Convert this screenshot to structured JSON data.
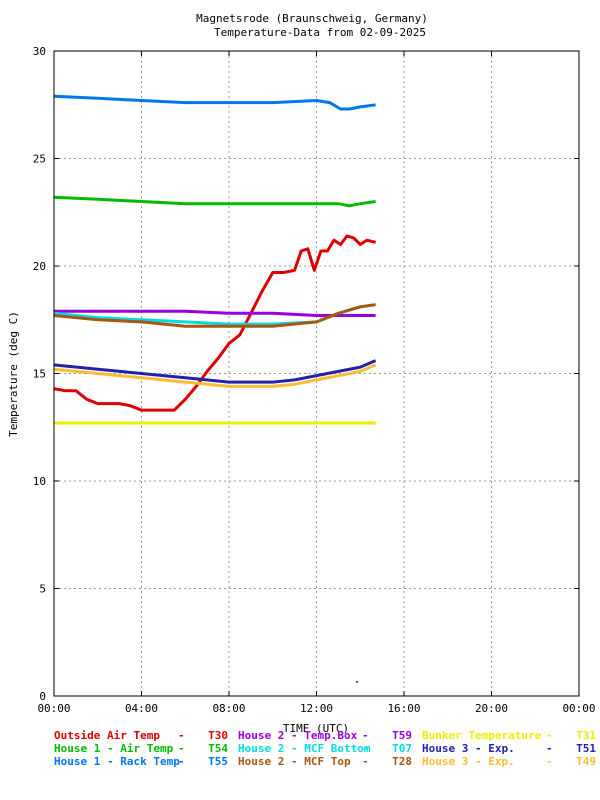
{
  "chart_data": {
    "type": "line",
    "title": "Magnetsrode (Braunschweig, Germany)",
    "subtitle": "Temperature-Data from 02-09-2025",
    "xlabel": "TIME (UTC)",
    "ylabel": "Temperature (deg C)",
    "xlim": [
      0,
      24
    ],
    "ylim": [
      0,
      30
    ],
    "x_ticks": [
      {
        "value": 0,
        "label": "00:00"
      },
      {
        "value": 4,
        "label": "04:00"
      },
      {
        "value": 8,
        "label": "08:00"
      },
      {
        "value": 12,
        "label": "12:00"
      },
      {
        "value": 16,
        "label": "16:00"
      },
      {
        "value": 20,
        "label": "20:00"
      },
      {
        "value": 24,
        "label": "00:00"
      }
    ],
    "y_ticks": [
      0,
      5,
      10,
      15,
      20,
      25,
      30
    ],
    "grid": true,
    "legend_position": "bottom",
    "series": [
      {
        "name": "Outside Air Temp",
        "code": "T30",
        "color": "#dd0000",
        "x": [
          0,
          0.5,
          1,
          1.5,
          2,
          2.5,
          3,
          3.5,
          4,
          4.5,
          5,
          5.5,
          6,
          6.5,
          7,
          7.5,
          8,
          8.5,
          9,
          9.5,
          10,
          10.5,
          11,
          11.3,
          11.6,
          11.9,
          12.2,
          12.5,
          12.8,
          13.1,
          13.4,
          13.7,
          14,
          14.3,
          14.7
        ],
        "y": [
          14.3,
          14.2,
          14.2,
          13.8,
          13.6,
          13.6,
          13.6,
          13.5,
          13.3,
          13.3,
          13.3,
          13.3,
          13.8,
          14.4,
          15.1,
          15.7,
          16.4,
          16.8,
          17.8,
          18.8,
          19.7,
          19.7,
          19.8,
          20.7,
          20.8,
          19.8,
          20.7,
          20.7,
          21.2,
          21.0,
          21.4,
          21.3,
          21.0,
          21.2,
          21.1
        ]
      },
      {
        "name": "House 1 - Air  Temp",
        "code": "T54",
        "color": "#00bb00",
        "x": [
          0,
          2,
          4,
          6,
          8,
          10,
          12,
          13,
          13.5,
          14,
          14.7
        ],
        "y": [
          23.2,
          23.1,
          23.0,
          22.9,
          22.9,
          22.9,
          22.9,
          22.9,
          22.8,
          22.9,
          23.0
        ]
      },
      {
        "name": "House 1 - Rack Temp",
        "code": "T55",
        "color": "#0077ee",
        "x": [
          0,
          2,
          4,
          6,
          8,
          10,
          12,
          12.6,
          13.1,
          13.5,
          14,
          14.7
        ],
        "y": [
          27.9,
          27.8,
          27.7,
          27.6,
          27.6,
          27.6,
          27.7,
          27.6,
          27.3,
          27.3,
          27.4,
          27.5
        ]
      },
      {
        "name": "House 2 - Temp.Box",
        "code": "T59",
        "color": "#9900dd",
        "x": [
          0,
          2,
          4,
          6,
          8,
          10,
          12,
          14,
          14.7
        ],
        "y": [
          17.9,
          17.9,
          17.9,
          17.9,
          17.8,
          17.8,
          17.7,
          17.7,
          17.7
        ]
      },
      {
        "name": "House 2 - MCF Bottom",
        "code": "T07",
        "color": "#00dddd",
        "x": [
          0,
          2,
          4,
          6,
          8,
          10,
          12,
          13,
          14,
          14.7
        ],
        "y": [
          17.8,
          17.6,
          17.5,
          17.4,
          17.3,
          17.3,
          17.4,
          17.8,
          18.1,
          18.2
        ]
      },
      {
        "name": "House 2 - MCF Top",
        "code": "T28",
        "color": "#aa5511",
        "x": [
          0,
          2,
          4,
          6,
          8,
          10,
          12,
          13,
          14,
          14.7
        ],
        "y": [
          17.7,
          17.5,
          17.4,
          17.2,
          17.2,
          17.2,
          17.4,
          17.8,
          18.1,
          18.2
        ]
      },
      {
        "name": "Bunker Temperature",
        "code": "T31",
        "color": "#eeee00",
        "x": [
          0,
          4,
          8,
          12,
          14.7
        ],
        "y": [
          12.7,
          12.7,
          12.7,
          12.7,
          12.7
        ]
      },
      {
        "name": "House 3 - Exp.",
        "code": "T51",
        "color": "#2222aa",
        "x": [
          0,
          2,
          4,
          6,
          8,
          10,
          11,
          12,
          13,
          14,
          14.7
        ],
        "y": [
          15.4,
          15.2,
          15.0,
          14.8,
          14.6,
          14.6,
          14.7,
          14.9,
          15.1,
          15.3,
          15.6
        ]
      },
      {
        "name": "House 3 - Exp.",
        "code": "T49",
        "color": "#ffbb33",
        "x": [
          0,
          2,
          4,
          6,
          8,
          10,
          11,
          12,
          13,
          14,
          14.7
        ],
        "y": [
          15.2,
          15.0,
          14.8,
          14.6,
          14.4,
          14.4,
          14.5,
          14.7,
          14.9,
          15.1,
          15.4
        ]
      }
    ],
    "legend_rows": [
      [
        0,
        3,
        6
      ],
      [
        1,
        4,
        7
      ],
      [
        2,
        5,
        8
      ]
    ]
  }
}
